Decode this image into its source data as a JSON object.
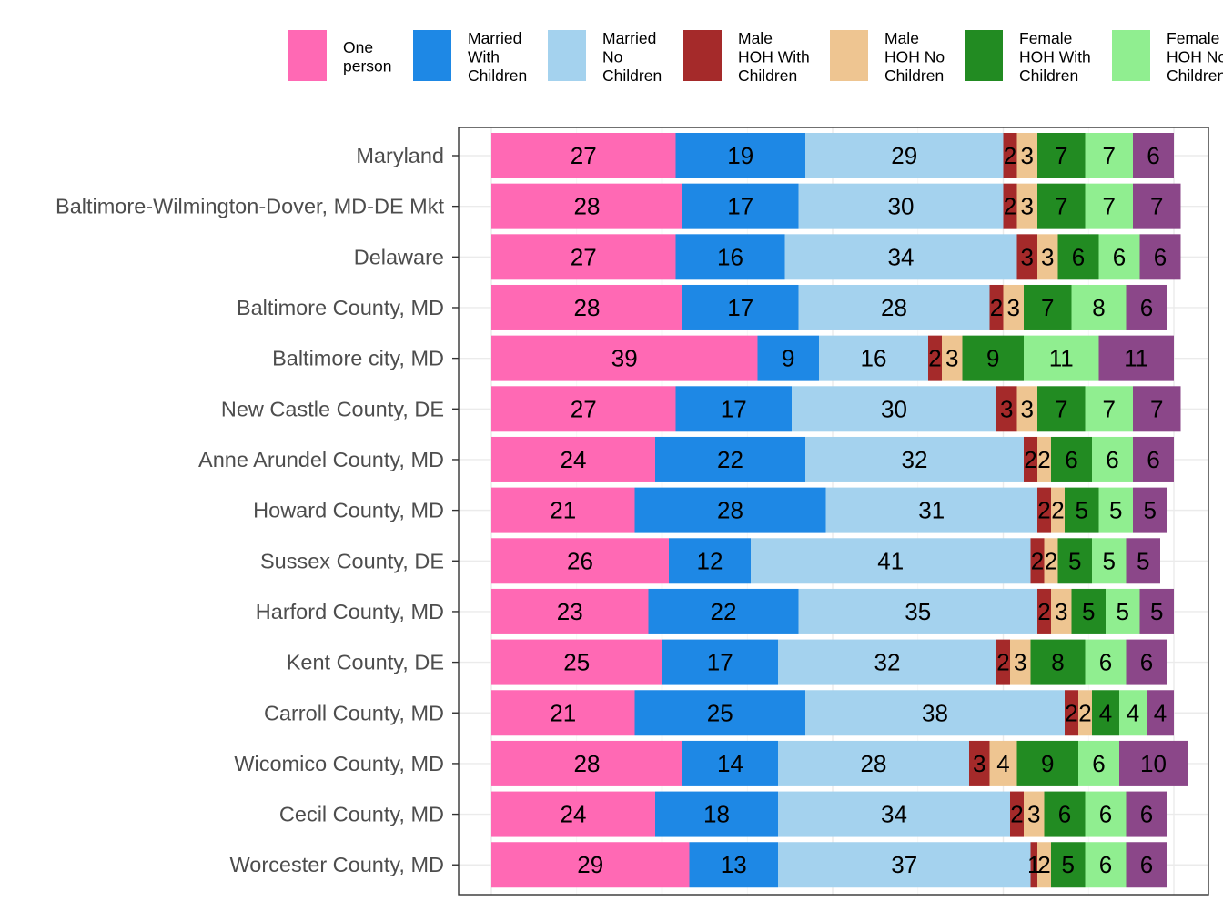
{
  "chart_data": {
    "type": "bar",
    "orientation": "horizontal",
    "stacked": true,
    "normalized": true,
    "title": "",
    "xlabel": "",
    "ylabel": "",
    "xlim": [
      0,
      100
    ],
    "grid": true,
    "legend_position": "top",
    "categories": [
      "Maryland",
      "Baltimore-Wilmington-Dover, MD-DE Mkt",
      "Delaware",
      "Baltimore County, MD",
      "Baltimore city, MD",
      "New Castle County, DE",
      "Anne Arundel County, MD",
      "Howard County, MD",
      "Sussex County, DE",
      "Harford County, MD",
      "Kent County, DE",
      "Carroll County, MD",
      "Wicomico County, MD",
      "Cecil County, MD",
      "Worcester County, MD"
    ],
    "series": [
      {
        "name": "One person",
        "color": "#FF69B4",
        "values": [
          27,
          28,
          27,
          28,
          39,
          27,
          24,
          21,
          26,
          23,
          25,
          21,
          28,
          24,
          29
        ]
      },
      {
        "name": "Married With Children",
        "color": "#1E88E5",
        "values": [
          19,
          17,
          16,
          17,
          9,
          17,
          22,
          28,
          12,
          22,
          17,
          25,
          14,
          18,
          13
        ]
      },
      {
        "name": "Married No Children",
        "color": "#A4D2EE",
        "values": [
          29,
          30,
          34,
          28,
          16,
          30,
          32,
          31,
          41,
          35,
          32,
          38,
          28,
          34,
          37
        ]
      },
      {
        "name": "Male HOH With Children",
        "color": "#A52A2A",
        "values": [
          2,
          2,
          3,
          2,
          2,
          3,
          2,
          2,
          2,
          2,
          2,
          2,
          3,
          2,
          1
        ]
      },
      {
        "name": "Male HOH No Children",
        "color": "#EEC591",
        "values": [
          3,
          3,
          3,
          3,
          3,
          3,
          2,
          2,
          2,
          3,
          3,
          2,
          4,
          3,
          2
        ]
      },
      {
        "name": "Female HOH With Children",
        "color": "#228B22",
        "values": [
          7,
          7,
          6,
          7,
          9,
          7,
          6,
          5,
          5,
          5,
          8,
          4,
          9,
          6,
          5
        ]
      },
      {
        "name": "Female HOH No Children",
        "color": "#90EE90",
        "values": [
          7,
          7,
          6,
          8,
          11,
          7,
          6,
          5,
          5,
          5,
          6,
          4,
          6,
          6,
          6
        ]
      },
      {
        "name": "",
        "color": "#8B4789",
        "values": [
          6,
          7,
          6,
          6,
          11,
          7,
          6,
          5,
          5,
          5,
          6,
          4,
          10,
          6,
          6
        ]
      }
    ],
    "legend": [
      {
        "line1": "One",
        "line2": "person",
        "line3": ""
      },
      {
        "line1": "Married",
        "line2": "With",
        "line3": "Children"
      },
      {
        "line1": "Married",
        "line2": "No",
        "line3": "Children"
      },
      {
        "line1": "Male",
        "line2": "HOH With",
        "line3": "Children"
      },
      {
        "line1": "Male",
        "line2": "HOH No",
        "line3": "Children"
      },
      {
        "line1": "Female",
        "line2": "HOH With",
        "line3": "Children"
      },
      {
        "line1": "Female",
        "line2": "HOH No",
        "line3": "Children"
      }
    ]
  }
}
